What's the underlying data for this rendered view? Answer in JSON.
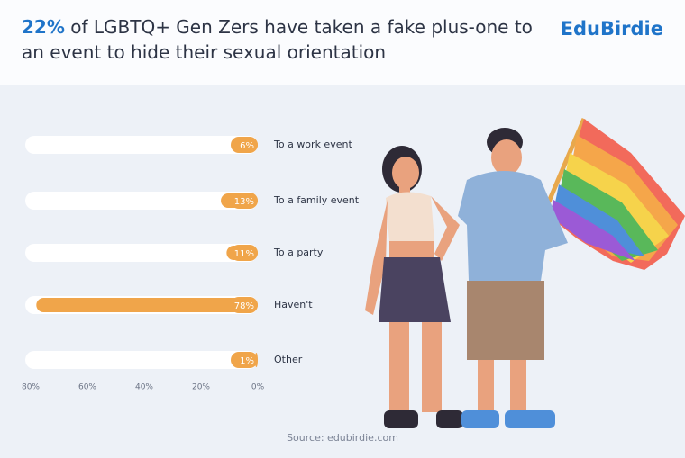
{
  "chart_data": {
    "type": "bar",
    "orientation": "horizontal",
    "title_highlight": "22%",
    "title": "of LGBTQ+ Gen Zers have taken a fake plus-one to an event to hide their sexual orientation",
    "brand": "EduBirdie",
    "source": "Source: edubirdie.com",
    "categories": [
      "To a work event",
      "To a family event",
      "To a party",
      "Haven't",
      "Other"
    ],
    "values": [
      6,
      13,
      11,
      78,
      1
    ],
    "value_labels": [
      "6%",
      "13%",
      "11%",
      "78%",
      "1%"
    ],
    "color": "#f0a54a",
    "xlim": [
      80,
      0
    ],
    "xticks": [
      {
        "value": 80,
        "label": "80%"
      },
      {
        "value": 60,
        "label": "60%"
      },
      {
        "value": 40,
        "label": "40%"
      },
      {
        "value": 20,
        "label": "20%"
      },
      {
        "value": 0,
        "label": "0%"
      }
    ]
  }
}
